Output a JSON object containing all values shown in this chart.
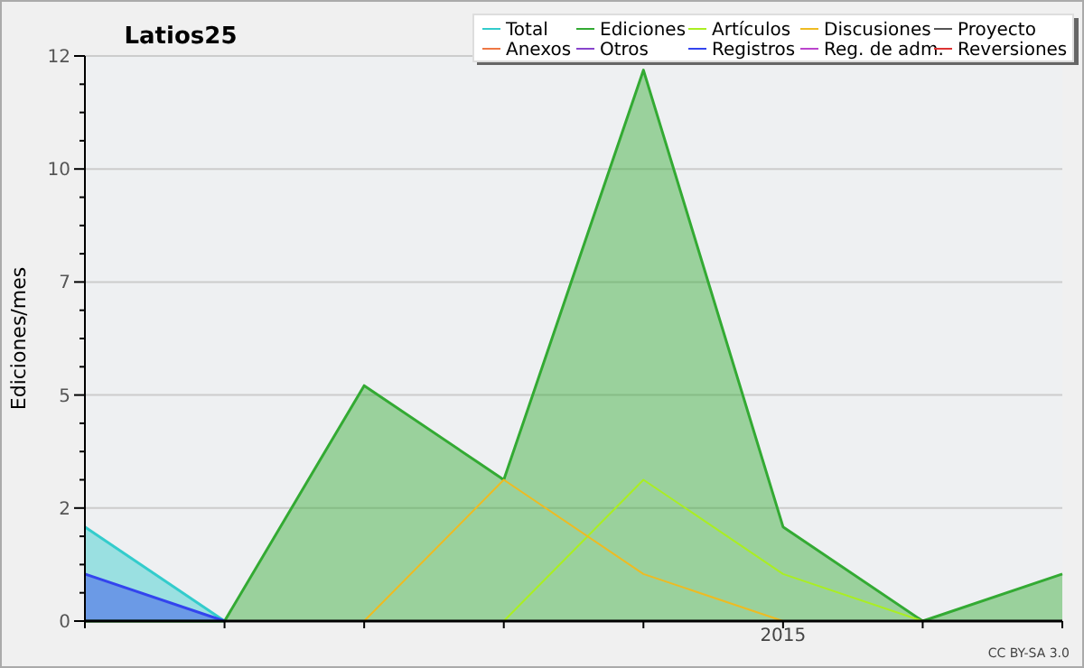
{
  "chart_data": {
    "type": "area",
    "title": "Latios25",
    "ylabel": "Ediciones/mes",
    "categories": [
      null,
      null,
      null,
      null,
      null,
      "2015",
      null,
      null
    ],
    "ylim": [
      0,
      12
    ],
    "yticks": [
      0,
      {
        "value": 0.6,
        "label": null
      },
      {
        "value": 1.2,
        "label": null
      },
      {
        "value": 1.8,
        "label": null
      },
      {
        "value": 2.4,
        "label": "2"
      },
      {
        "value": 3,
        "label": null
      },
      {
        "value": 3.6,
        "label": null
      },
      {
        "value": 4.2,
        "label": null
      },
      {
        "value": 4.8,
        "label": "5"
      },
      {
        "value": 5.4,
        "label": null
      },
      {
        "value": 6,
        "label": null
      },
      {
        "value": 6.6,
        "label": null
      },
      {
        "value": 7.2,
        "label": "7"
      },
      {
        "value": 7.8,
        "label": null
      },
      {
        "value": 8.4,
        "label": null
      },
      {
        "value": 9,
        "label": null
      },
      {
        "value": 9.6,
        "label": "10"
      },
      {
        "value": 10.2,
        "label": null
      },
      {
        "value": 10.8,
        "label": null
      },
      {
        "value": 11.4,
        "label": null
      },
      12
    ],
    "grid": "y",
    "legend": "top right",
    "marker": "none",
    "line_style": "solid",
    "annotations": [
      "CC BY-SA 3.0"
    ],
    "series": [
      {
        "name": "Total",
        "color": "#33cccc",
        "values": [
          2,
          0,
          null,
          null,
          null,
          null,
          null,
          null
        ]
      },
      {
        "name": "Ediciones",
        "color": "#33aa33",
        "values": [
          0,
          0,
          5,
          3,
          11.7,
          2,
          0,
          1
        ]
      },
      {
        "name": "Artículos",
        "color": "#aaee22",
        "type": "line",
        "values": [
          null,
          null,
          0,
          0,
          3,
          1,
          0,
          0
        ]
      },
      {
        "name": "Discusiones",
        "color": "#eebb22",
        "type": "line",
        "values": [
          null,
          null,
          0,
          3,
          1,
          0,
          0,
          0
        ]
      },
      {
        "name": "Proyecto",
        "color": "#555555",
        "type": "line",
        "values": [
          null,
          null,
          null,
          null,
          null,
          null,
          null,
          null
        ]
      },
      {
        "name": "Anexos",
        "color": "#ee7744",
        "type": "line",
        "values": [
          null,
          null,
          null,
          null,
          null,
          null,
          null,
          null
        ]
      },
      {
        "name": "Otros",
        "color": "#8844cc",
        "type": "line",
        "values": [
          null,
          null,
          null,
          null,
          null,
          null,
          null,
          null
        ]
      },
      {
        "name": "Registros",
        "color": "#3344ee",
        "values": [
          1,
          0,
          null,
          null,
          null,
          null,
          null,
          null
        ]
      },
      {
        "name": "Reg. de adm.",
        "color": "#bb44cc",
        "type": "line",
        "values": [
          null,
          null,
          null,
          null,
          null,
          null,
          null,
          null
        ]
      },
      {
        "name": "Reversiones",
        "color": "#dd3333",
        "type": "line",
        "values": [
          null,
          null,
          null,
          null,
          null,
          null,
          null,
          null
        ]
      }
    ]
  }
}
